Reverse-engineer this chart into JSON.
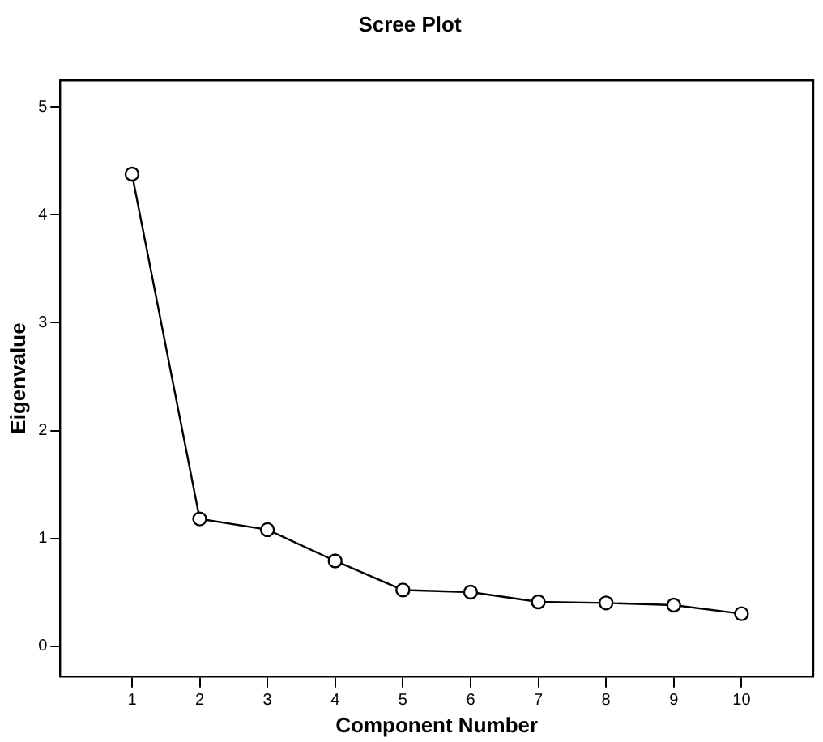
{
  "chart_data": {
    "type": "line",
    "title": "Scree Plot",
    "xlabel": "Component Number",
    "ylabel": "Eigenvalue",
    "x": [
      1,
      2,
      3,
      4,
      5,
      6,
      7,
      8,
      9,
      10
    ],
    "values": [
      4.38,
      1.18,
      1.08,
      0.79,
      0.52,
      0.5,
      0.41,
      0.4,
      0.38,
      0.3
    ],
    "color": "#000000",
    "marker": "circle",
    "line_style": "solid",
    "xlim": [
      -0.06,
      11.06
    ],
    "xticks": [
      1,
      2,
      3,
      4,
      5,
      6,
      7,
      8,
      9,
      10
    ],
    "ylim": [
      -0.28,
      5.25
    ],
    "yticks": [
      0,
      1,
      2,
      3,
      4,
      5
    ],
    "grid": false,
    "legend": false
  }
}
